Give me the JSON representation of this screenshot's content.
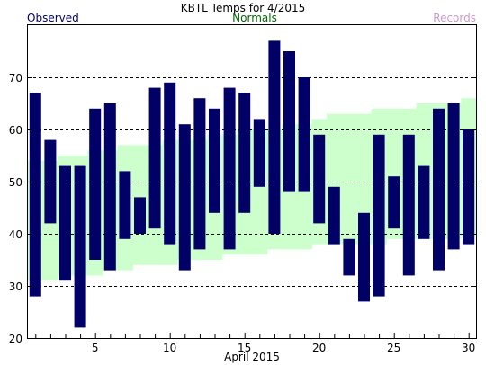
{
  "chart_data": {
    "type": "bar",
    "title": "KBTL Temps for  4/2015",
    "xlabel": "April 2015",
    "ylabel": "",
    "legend": {
      "observed": "Observed",
      "normals": "Normals",
      "records": "Records"
    },
    "legend_placement": "top",
    "colors": {
      "observed": "#000066",
      "normals": "#ccffcc",
      "normals_label": "#006600",
      "records_label": "#cc99cc",
      "observed_label": "#000066"
    },
    "ylim": [
      20,
      80
    ],
    "xlim": [
      0.5,
      30.5
    ],
    "y_ticks": [
      20,
      30,
      40,
      50,
      60,
      70
    ],
    "x_ticks": [
      5,
      10,
      15,
      20,
      25,
      30
    ],
    "grid_y": [
      30,
      40,
      50,
      60,
      70
    ],
    "observed": [
      {
        "day": 1,
        "high": 67,
        "low": 28
      },
      {
        "day": 2,
        "high": 58,
        "low": 42
      },
      {
        "day": 3,
        "high": 53,
        "low": 31
      },
      {
        "day": 4,
        "high": 53,
        "low": 22
      },
      {
        "day": 5,
        "high": 64,
        "low": 35
      },
      {
        "day": 6,
        "high": 65,
        "low": 33
      },
      {
        "day": 7,
        "high": 52,
        "low": 39
      },
      {
        "day": 8,
        "high": 47,
        "low": 40
      },
      {
        "day": 9,
        "high": 68,
        "low": 41
      },
      {
        "day": 10,
        "high": 69,
        "low": 38
      },
      {
        "day": 11,
        "high": 61,
        "low": 33
      },
      {
        "day": 12,
        "high": 66,
        "low": 37
      },
      {
        "day": 13,
        "high": 64,
        "low": 44
      },
      {
        "day": 14,
        "high": 68,
        "low": 37
      },
      {
        "day": 15,
        "high": 67,
        "low": 44
      },
      {
        "day": 16,
        "high": 62,
        "low": 49
      },
      {
        "day": 17,
        "high": 77,
        "low": 40
      },
      {
        "day": 18,
        "high": 75,
        "low": 48
      },
      {
        "day": 19,
        "high": 70,
        "low": 48
      },
      {
        "day": 20,
        "high": 59,
        "low": 42
      },
      {
        "day": 21,
        "high": 49,
        "low": 38
      },
      {
        "day": 22,
        "high": 39,
        "low": 32
      },
      {
        "day": 23,
        "high": 44,
        "low": 27
      },
      {
        "day": 24,
        "high": 59,
        "low": 28
      },
      {
        "day": 25,
        "high": 51,
        "low": 41
      },
      {
        "day": 26,
        "high": 59,
        "low": 32
      },
      {
        "day": 27,
        "high": 53,
        "low": 39
      },
      {
        "day": 28,
        "high": 64,
        "low": 33
      },
      {
        "day": 29,
        "high": 65,
        "low": 37
      },
      {
        "day": 30,
        "high": 60,
        "low": 38
      }
    ],
    "normals": [
      {
        "day": 1,
        "high": 54,
        "low": 31
      },
      {
        "day": 2,
        "high": 54,
        "low": 31
      },
      {
        "day": 3,
        "high": 55,
        "low": 32
      },
      {
        "day": 4,
        "high": 55,
        "low": 32
      },
      {
        "day": 5,
        "high": 56,
        "low": 32
      },
      {
        "day": 6,
        "high": 56,
        "low": 33
      },
      {
        "day": 7,
        "high": 57,
        "low": 33
      },
      {
        "day": 8,
        "high": 57,
        "low": 34
      },
      {
        "day": 9,
        "high": 57,
        "low": 34
      },
      {
        "day": 10,
        "high": 58,
        "low": 34
      },
      {
        "day": 11,
        "high": 58,
        "low": 35
      },
      {
        "day": 12,
        "high": 58,
        "low": 35
      },
      {
        "day": 13,
        "high": 59,
        "low": 35
      },
      {
        "day": 14,
        "high": 59,
        "low": 36
      },
      {
        "day": 15,
        "high": 60,
        "low": 36
      },
      {
        "day": 16,
        "high": 60,
        "low": 36
      },
      {
        "day": 17,
        "high": 60,
        "low": 37
      },
      {
        "day": 18,
        "high": 61,
        "low": 37
      },
      {
        "day": 19,
        "high": 61,
        "low": 37
      },
      {
        "day": 20,
        "high": 62,
        "low": 38
      },
      {
        "day": 21,
        "high": 63,
        "low": 38
      },
      {
        "day": 22,
        "high": 63,
        "low": 38
      },
      {
        "day": 23,
        "high": 63,
        "low": 38
      },
      {
        "day": 24,
        "high": 64,
        "low": 38
      },
      {
        "day": 25,
        "high": 64,
        "low": 39
      },
      {
        "day": 26,
        "high": 64,
        "low": 39
      },
      {
        "day": 27,
        "high": 65,
        "low": 39
      },
      {
        "day": 28,
        "high": 65,
        "low": 39
      },
      {
        "day": 29,
        "high": 65,
        "low": 39
      },
      {
        "day": 30,
        "high": 66,
        "low": 40
      }
    ]
  }
}
